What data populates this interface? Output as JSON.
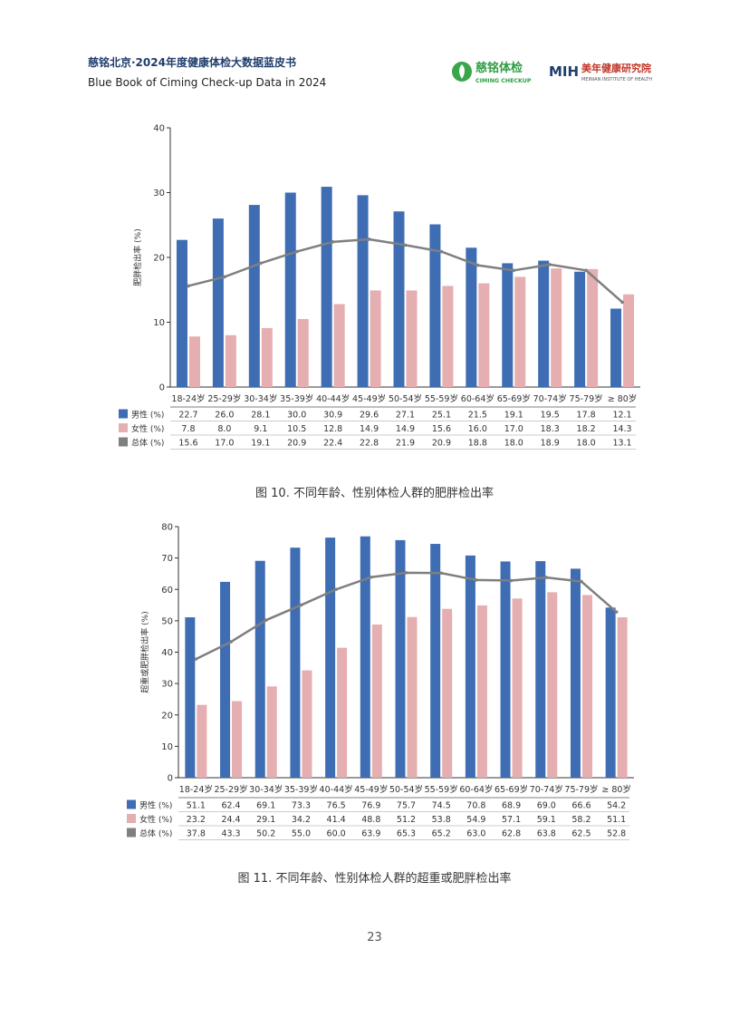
{
  "header": {
    "title_cn": "慈铭北京·2024年度健康体检大数据蓝皮书",
    "title_en": "Blue Book of Ciming Check-up Data in 2024",
    "logo1_cn": "慈铭体检",
    "logo1_en": "CIMING CHECKUP",
    "logo2_mark": "MIH",
    "logo2_cn": "美年健康研究院",
    "logo2_en": "MEINIAN INSTITUTE OF HEALTH"
  },
  "colors": {
    "male": "#3e6db3",
    "female": "#e5aeb0",
    "total": "#7f7f7f",
    "axis": "#333333"
  },
  "chart_data": [
    {
      "type": "bar",
      "title": "图 10. 不同年龄、性别体检人群的肥胖检出率",
      "ylabel": "肥胖检出率 (%)",
      "ylim": [
        0,
        40
      ],
      "yticks": [
        "0",
        "10",
        "20",
        "30",
        "40"
      ],
      "categories": [
        "18-24岁",
        "25-29岁",
        "30-34岁",
        "35-39岁",
        "40-44岁",
        "45-49岁",
        "50-54岁",
        "55-59岁",
        "60-64岁",
        "65-69岁",
        "70-74岁",
        "75-79岁",
        "≥ 80岁"
      ],
      "series": [
        {
          "name": "男性 (%)",
          "kind": "bar",
          "values": [
            22.7,
            26.0,
            28.1,
            30.0,
            30.9,
            29.6,
            27.1,
            25.1,
            21.5,
            19.1,
            19.5,
            17.8,
            12.1
          ]
        },
        {
          "name": "女性 (%)",
          "kind": "bar",
          "values": [
            7.8,
            8.0,
            9.1,
            10.5,
            12.8,
            14.9,
            14.9,
            15.6,
            16.0,
            17.0,
            18.3,
            18.2,
            14.3
          ]
        },
        {
          "name": "总体 (%)",
          "kind": "line",
          "values": [
            15.6,
            17.0,
            19.1,
            20.9,
            22.4,
            22.8,
            21.9,
            20.9,
            18.8,
            18.0,
            18.9,
            18.0,
            13.1
          ]
        }
      ]
    },
    {
      "type": "bar",
      "title": "图 11. 不同年龄、性别体检人群的超重或肥胖检出率",
      "ylabel": "超重或肥胖检出率 (%)",
      "ylim": [
        0,
        80
      ],
      "yticks": [
        "0",
        "10",
        "20",
        "30",
        "40",
        "50",
        "60",
        "70",
        "80"
      ],
      "categories": [
        "18-24岁",
        "25-29岁",
        "30-34岁",
        "35-39岁",
        "40-44岁",
        "45-49岁",
        "50-54岁",
        "55-59岁",
        "60-64岁",
        "65-69岁",
        "70-74岁",
        "75-79岁",
        "≥ 80岁"
      ],
      "series": [
        {
          "name": "男性 (%)",
          "kind": "bar",
          "values": [
            51.1,
            62.4,
            69.1,
            73.3,
            76.5,
            76.9,
            75.7,
            74.5,
            70.8,
            68.9,
            69.0,
            66.6,
            54.2
          ]
        },
        {
          "name": "女性 (%)",
          "kind": "bar",
          "values": [
            23.2,
            24.4,
            29.1,
            34.2,
            41.4,
            48.8,
            51.2,
            53.8,
            54.9,
            57.1,
            59.1,
            58.2,
            51.1
          ]
        },
        {
          "name": "总体 (%)",
          "kind": "line",
          "values": [
            37.8,
            43.3,
            50.2,
            55.0,
            60.0,
            63.9,
            65.3,
            65.2,
            63.0,
            62.8,
            63.8,
            62.5,
            52.8
          ]
        }
      ]
    }
  ],
  "page_number": "23"
}
